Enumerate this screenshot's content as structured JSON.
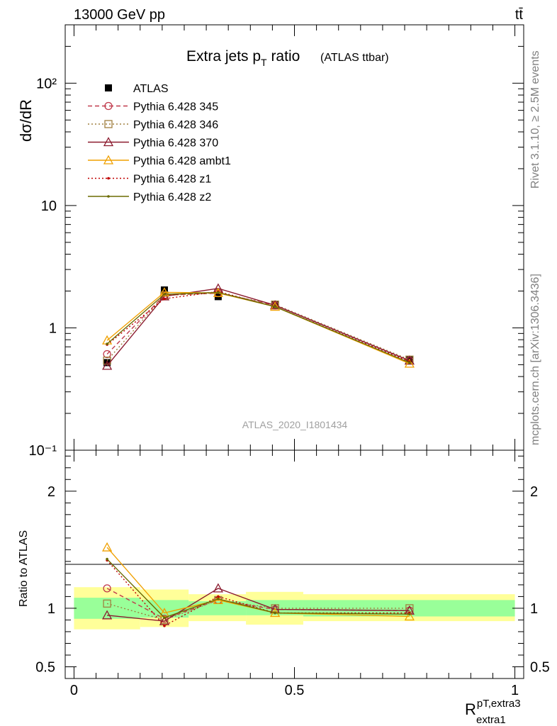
{
  "header": {
    "left": "13000 GeV pp",
    "right": "tt̄"
  },
  "side_text": {
    "rivet": "Rivet 3.1.10, ≥ 2.5M events",
    "mcplots": "mcplots.cern.ch [arXiv:1306.3436]"
  },
  "chart_data": [
    {
      "type": "line",
      "title": "Extra jets p",
      "title_sub": "T",
      "title_tail": " ratio",
      "title_note": "(ATLAS ttbar)",
      "ylabel": "dσ/dR",
      "yscale": "log",
      "ylim": [
        0.1,
        300
      ],
      "xlim": [
        -0.02,
        1.02
      ],
      "ytick_labels": [
        "10⁻¹",
        "1",
        "10",
        "10²"
      ],
      "ytick_values": [
        0.1,
        1,
        10,
        100
      ],
      "annotation": "ATLAS_2020_I1801434",
      "legend_position": "top-left",
      "x": [
        0.075,
        0.205,
        0.327,
        0.456,
        0.761
      ],
      "series": [
        {
          "name": "ATLAS",
          "color": "#000000",
          "marker": "square",
          "line": "none",
          "values": [
            0.52,
            2.04,
            1.8,
            1.55,
            0.55
          ]
        },
        {
          "name": "Pythia 6.428 345",
          "color": "#c0394b",
          "marker": "circle",
          "line": "dashed",
          "values": [
            0.61,
            1.85,
            1.92,
            1.53,
            0.54
          ]
        },
        {
          "name": "Pythia 6.428 346",
          "color": "#a08040",
          "marker": "square-open",
          "line": "dotted",
          "values": [
            0.54,
            1.84,
            1.93,
            1.55,
            0.55
          ]
        },
        {
          "name": "Pythia 6.428 370",
          "color": "#8b1a2e",
          "marker": "triangle",
          "line": "solid",
          "values": [
            0.49,
            1.81,
            2.1,
            1.53,
            0.54
          ]
        },
        {
          "name": "Pythia 6.428 ambt1",
          "color": "#f0a000",
          "marker": "triangle",
          "line": "solid",
          "values": [
            0.79,
            1.95,
            1.93,
            1.49,
            0.51
          ]
        },
        {
          "name": "Pythia 6.428 z1",
          "color": "#c00000",
          "marker": "dot",
          "line": "dotted",
          "values": [
            0.73,
            1.73,
            1.98,
            1.49,
            0.53
          ]
        },
        {
          "name": "Pythia 6.428 z2",
          "color": "#6b6b00",
          "marker": "dot",
          "line": "solid",
          "values": [
            0.74,
            1.88,
            1.95,
            1.49,
            0.52
          ]
        }
      ]
    },
    {
      "type": "line",
      "ylabel": "Ratio to ATLAS",
      "xlabel": "R",
      "xlabel_sub": "extra1",
      "xlabel_sup": "pT,extra3",
      "ylim": [
        0.4,
        2.35
      ],
      "xlim": [
        -0.02,
        1.02
      ],
      "xtick_labels": [
        "0",
        "0.5",
        "1"
      ],
      "xtick_values": [
        0,
        0.5,
        1
      ],
      "ytick_labels": [
        "0.5",
        "1",
        "2"
      ],
      "ytick_values": [
        0.5,
        1,
        2
      ],
      "bands": {
        "edges": [
          0,
          0.15,
          0.26,
          0.39,
          0.52,
          1.0
        ],
        "green": [
          [
            0.91,
            1.09
          ],
          [
            0.92,
            1.07
          ],
          [
            0.94,
            1.06
          ],
          [
            0.94,
            1.07
          ],
          [
            0.93,
            1.07
          ]
        ],
        "yellow": [
          [
            0.82,
            1.18
          ],
          [
            0.84,
            1.16
          ],
          [
            0.89,
            1.12
          ],
          [
            0.86,
            1.14
          ],
          [
            0.89,
            1.12
          ]
        ]
      },
      "series": [
        {
          "name": "Pythia 6.428 345",
          "values": [
            1.17,
            0.91,
            1.07,
            0.99,
            0.98
          ]
        },
        {
          "name": "Pythia 6.428 346",
          "values": [
            1.04,
            0.9,
            1.07,
            1.0,
            1.0
          ]
        },
        {
          "name": "Pythia 6.428 370",
          "values": [
            0.94,
            0.89,
            1.17,
            0.99,
            0.98
          ]
        },
        {
          "name": "Pythia 6.428 ambt1",
          "values": [
            1.52,
            0.96,
            1.07,
            0.96,
            0.93
          ]
        },
        {
          "name": "Pythia 6.428 z1",
          "values": [
            1.41,
            0.85,
            1.1,
            0.96,
            0.96
          ]
        },
        {
          "name": "Pythia 6.428 z2",
          "values": [
            1.42,
            0.92,
            1.08,
            0.96,
            0.95
          ]
        }
      ]
    }
  ]
}
